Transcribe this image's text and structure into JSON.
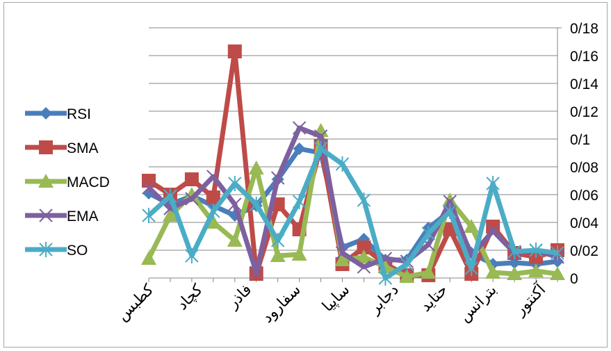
{
  "chart_data": {
    "type": "line",
    "categories": [
      "كطبس",
      "",
      "كچاد",
      "",
      "فاذر",
      "",
      "سفارود",
      "",
      "",
      "ساپيا",
      "",
      "دجابر",
      "",
      "حتايد",
      "",
      "",
      "بترانس",
      "",
      "آكنتور",
      ""
    ],
    "x_tick_labels": [
      "كطبس",
      "كچاد",
      "فاذر",
      "سفارود",
      "ساپيا",
      "دجابر",
      "حتايد",
      "بترانس",
      "آكنتور"
    ],
    "y_ticks": [
      "0",
      "0/02",
      "0/04",
      "0/06",
      "0/08",
      "0/1",
      "0/12",
      "0/14",
      "0/16",
      "0/18"
    ],
    "ylim": [
      0,
      0.18
    ],
    "grid": true,
    "legend_position": "left",
    "series": [
      {
        "name": "RSI",
        "color": "#4A7EBB",
        "marker": "diamond",
        "values": [
          0.061,
          0.053,
          0.059,
          0.052,
          0.045,
          0.052,
          0.071,
          0.093,
          0.09,
          0.022,
          0.028,
          0.013,
          0.013,
          0.036,
          0.048,
          0.018,
          0.01,
          0.011,
          0.01,
          0.012
        ]
      },
      {
        "name": "SMA",
        "color": "#BE4B48",
        "marker": "square",
        "values": [
          0.07,
          0.06,
          0.071,
          0.058,
          0.163,
          0.003,
          0.053,
          0.035,
          0.095,
          0.01,
          0.022,
          0.01,
          0.002,
          0.002,
          0.035,
          0.003,
          0.037,
          0.018,
          0.015,
          0.02
        ]
      },
      {
        "name": "MACD",
        "color": "#98B954",
        "marker": "triangle",
        "values": [
          0.014,
          0.045,
          0.06,
          0.04,
          0.027,
          0.079,
          0.016,
          0.017,
          0.106,
          0.013,
          0.015,
          0.008,
          0.001,
          0.004,
          0.056,
          0.037,
          0.004,
          0.003,
          0.005,
          0.003
        ]
      },
      {
        "name": "EMA",
        "color": "#7D60A0",
        "marker": "x",
        "values": [
          0.065,
          0.05,
          0.057,
          0.073,
          0.053,
          0.004,
          0.072,
          0.108,
          0.102,
          0.018,
          0.008,
          0.014,
          0.012,
          0.024,
          0.055,
          0.016,
          0.034,
          0.018,
          0.02,
          0.015
        ]
      },
      {
        "name": "SO",
        "color": "#4BACC6",
        "marker": "star",
        "values": [
          0.045,
          0.059,
          0.016,
          0.048,
          0.068,
          0.053,
          0.027,
          0.055,
          0.093,
          0.082,
          0.056,
          0.0,
          0.01,
          0.032,
          0.048,
          0.007,
          0.068,
          0.019,
          0.02,
          0.018
        ]
      }
    ]
  }
}
